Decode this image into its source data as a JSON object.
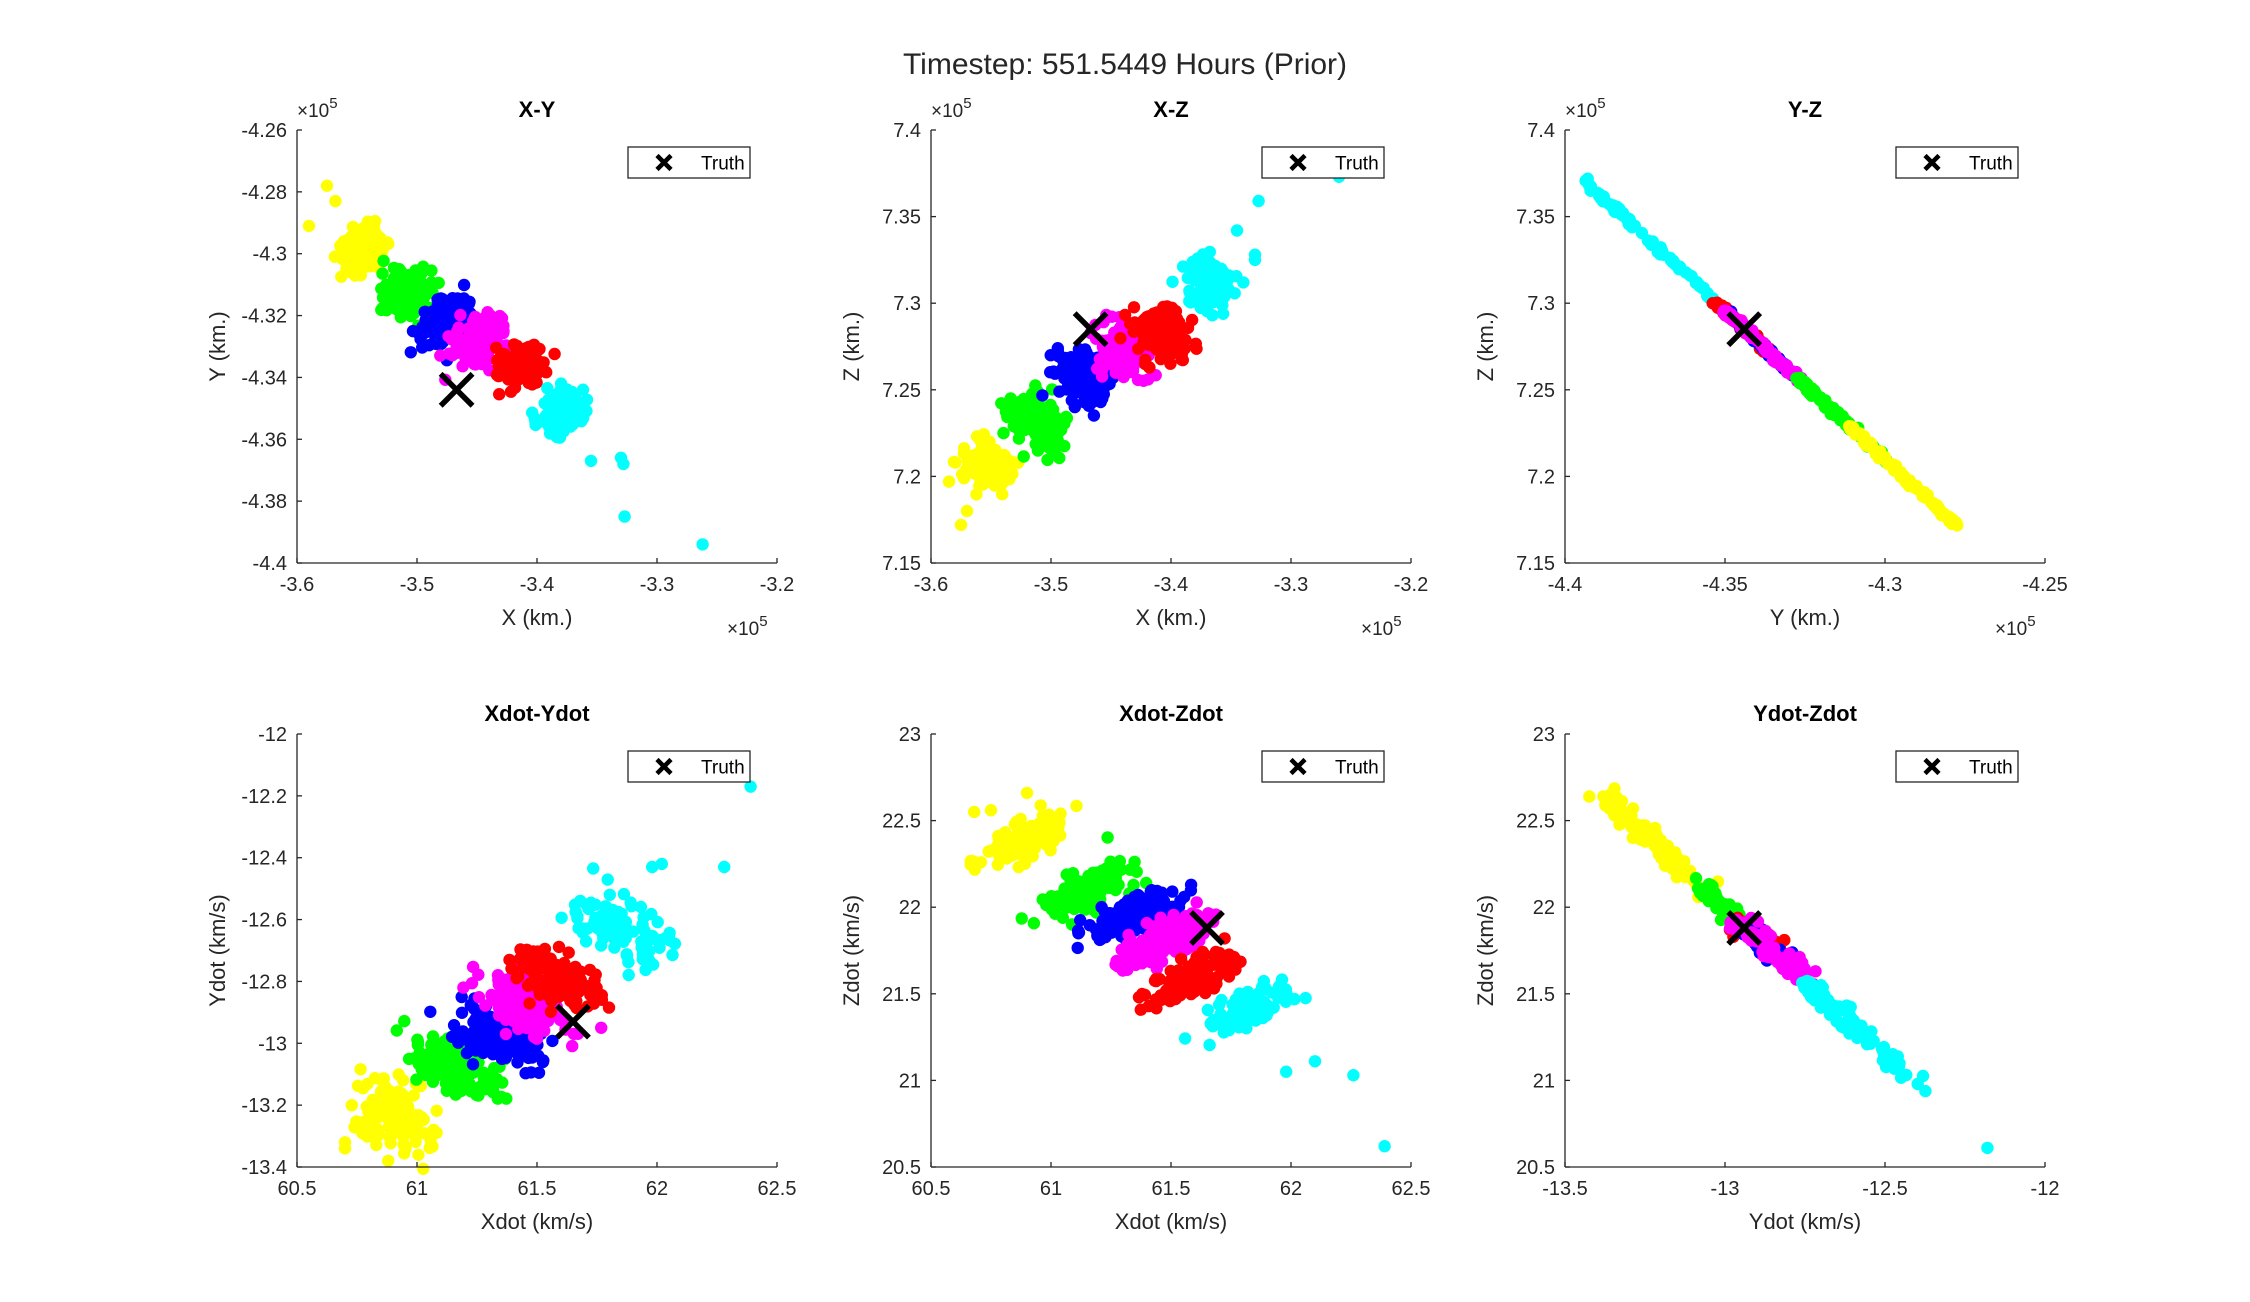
{
  "figure": {
    "title": "Timestep: 551.5449 Hours (Prior)"
  },
  "colors": {
    "series": [
      "#ffff00",
      "#00ff00",
      "#0000ff",
      "#ff00ff",
      "#ff0000",
      "#00ffff"
    ],
    "truth": "#000000"
  },
  "chart_data": [
    {
      "type": "scatter",
      "title": "X-Y",
      "xlabel": "X (km.)",
      "ylabel": "Y (km.)",
      "xlim": [
        -3.6,
        -3.2
      ],
      "ylim": [
        -4.4,
        -4.26
      ],
      "xticks": [
        -3.6,
        -3.5,
        -3.4,
        -3.3,
        -3.2
      ],
      "xtick_labels": [
        "-3.6",
        "-3.5",
        "-3.4",
        "-3.3",
        "-3.2"
      ],
      "yticks": [
        -4.4,
        -4.38,
        -4.36,
        -4.34,
        -4.32,
        -4.3,
        -4.28,
        -4.26
      ],
      "ytick_labels": [
        "-4.4",
        "-4.38",
        "-4.36",
        "-4.34",
        "-4.32",
        "-4.3",
        "-4.28",
        "-4.26"
      ],
      "x_exponent": "10",
      "x_exponent_power": "5",
      "y_exponent": "10",
      "y_exponent_power": "5",
      "legend": {
        "label": "Truth",
        "position": "top-right"
      },
      "truth": {
        "x": -3.467,
        "y": -4.344
      },
      "clusters": [
        {
          "color": "#ffff00",
          "center": [
            -3.545,
            -4.299
          ],
          "spread": [
            0.009,
            0.004
          ],
          "rotation": -0.55,
          "count": 110,
          "tail": [
            [
              -3.575,
              -4.278
            ],
            [
              -3.59,
              -4.291
            ],
            [
              -3.568,
              -4.283
            ],
            [
              -3.555,
              -4.306
            ]
          ]
        },
        {
          "color": "#00ff00",
          "center": [
            -3.508,
            -4.312
          ],
          "spread": [
            0.009,
            0.004
          ],
          "rotation": -0.55,
          "count": 150
        },
        {
          "color": "#0000ff",
          "center": [
            -3.477,
            -4.322
          ],
          "spread": [
            0.009,
            0.004
          ],
          "rotation": -0.55,
          "count": 150
        },
        {
          "color": "#ff00ff",
          "center": [
            -3.448,
            -4.328
          ],
          "spread": [
            0.009,
            0.004
          ],
          "rotation": -0.55,
          "count": 150
        },
        {
          "color": "#ff0000",
          "center": [
            -3.413,
            -4.336
          ],
          "spread": [
            0.009,
            0.004
          ],
          "rotation": -0.55,
          "count": 140
        },
        {
          "color": "#00ffff",
          "center": [
            -3.38,
            -4.351
          ],
          "spread": [
            0.008,
            0.004
          ],
          "rotation": -0.55,
          "count": 110,
          "tail": [
            [
              -3.33,
              -4.366
            ],
            [
              -3.328,
              -4.368
            ],
            [
              -3.327,
              -4.385
            ],
            [
              -3.262,
              -4.394
            ],
            [
              -3.355,
              -4.367
            ]
          ]
        }
      ]
    },
    {
      "type": "scatter",
      "title": "X-Z",
      "xlabel": "X (km.)",
      "ylabel": "Z (km.)",
      "xlim": [
        -3.6,
        -3.2
      ],
      "ylim": [
        7.15,
        7.4
      ],
      "xticks": [
        -3.6,
        -3.5,
        -3.4,
        -3.3,
        -3.2
      ],
      "xtick_labels": [
        "-3.6",
        "-3.5",
        "-3.4",
        "-3.3",
        "-3.2"
      ],
      "yticks": [
        7.15,
        7.2,
        7.25,
        7.3,
        7.35,
        7.4
      ],
      "ytick_labels": [
        "7.15",
        "7.2",
        "7.25",
        "7.3",
        "7.35",
        "7.4"
      ],
      "x_exponent": "10",
      "x_exponent_power": "5",
      "y_exponent": "10",
      "y_exponent_power": "5",
      "legend": {
        "label": "Truth",
        "position": "top-right"
      },
      "truth": {
        "x": -3.467,
        "y": 7.285
      },
      "clusters": [
        {
          "color": "#ffff00",
          "center": [
            -3.553,
            7.206
          ],
          "spread": [
            0.01,
            0.008
          ],
          "rotation": 0.6,
          "count": 110,
          "tail": [
            [
              -3.585,
              7.197
            ],
            [
              -3.575,
              7.172
            ],
            [
              -3.57,
              7.18
            ]
          ]
        },
        {
          "color": "#00ff00",
          "center": [
            -3.512,
            7.233
          ],
          "spread": [
            0.01,
            0.008
          ],
          "rotation": 0.6,
          "count": 150
        },
        {
          "color": "#0000ff",
          "center": [
            -3.475,
            7.259
          ],
          "spread": [
            0.01,
            0.008
          ],
          "rotation": 0.6,
          "count": 150
        },
        {
          "color": "#ff00ff",
          "center": [
            -3.44,
            7.271
          ],
          "spread": [
            0.01,
            0.008
          ],
          "rotation": 0.6,
          "count": 150
        },
        {
          "color": "#ff0000",
          "center": [
            -3.408,
            7.282
          ],
          "spread": [
            0.01,
            0.008
          ],
          "rotation": 0.6,
          "count": 140
        },
        {
          "color": "#00ffff",
          "center": [
            -3.368,
            7.31
          ],
          "spread": [
            0.009,
            0.008
          ],
          "rotation": 0.6,
          "count": 110,
          "tail": [
            [
              -3.33,
              7.325
            ],
            [
              -3.33,
              7.328
            ],
            [
              -3.327,
              7.359
            ],
            [
              -3.26,
              7.373
            ],
            [
              -3.345,
              7.342
            ]
          ]
        }
      ]
    },
    {
      "type": "scatter",
      "title": "Y-Z",
      "xlabel": "Y (km.)",
      "ylabel": "Z (km.)",
      "xlim": [
        -4.4,
        -4.25
      ],
      "ylim": [
        7.15,
        7.4
      ],
      "xticks": [
        -4.4,
        -4.35,
        -4.3,
        -4.25
      ],
      "xtick_labels": [
        "-4.4",
        "-4.35",
        "-4.3",
        "-4.25"
      ],
      "yticks": [
        7.15,
        7.2,
        7.25,
        7.3,
        7.35,
        7.4
      ],
      "ytick_labels": [
        "7.15",
        "7.2",
        "7.25",
        "7.3",
        "7.35",
        "7.4"
      ],
      "x_exponent": "10",
      "x_exponent_power": "5",
      "y_exponent": "10",
      "y_exponent_power": "5",
      "legend": {
        "label": "Truth",
        "position": "top-right"
      },
      "truth": {
        "x": -4.344,
        "y": 7.285
      },
      "line": {
        "x0": -4.395,
        "y0": 7.373,
        "x1": -4.278,
        "y1": 7.172
      },
      "clusters": [
        {
          "color": "#00ffff",
          "range": [
            0.0,
            0.38
          ],
          "count": 80,
          "jitter": 0.0012
        },
        {
          "color": "#ff0000",
          "range": [
            0.36,
            0.52
          ],
          "count": 70,
          "jitter": 0.0012
        },
        {
          "color": "#0000ff",
          "range": [
            0.38,
            0.58
          ],
          "count": 80,
          "jitter": 0.0012
        },
        {
          "color": "#ff00ff",
          "range": [
            0.38,
            0.62
          ],
          "count": 120,
          "jitter": 0.0012
        },
        {
          "color": "#00ff00",
          "range": [
            0.58,
            0.82
          ],
          "count": 100,
          "jitter": 0.0012
        },
        {
          "color": "#ffff00",
          "range": [
            0.72,
            1.0
          ],
          "count": 100,
          "jitter": 0.0012
        }
      ]
    },
    {
      "type": "scatter",
      "title": "Xdot-Ydot",
      "xlabel": "Xdot (km/s)",
      "ylabel": "Ydot (km/s)",
      "xlim": [
        60.5,
        62.5
      ],
      "ylim": [
        -13.4,
        -12
      ],
      "xticks": [
        60.5,
        61,
        61.5,
        62,
        62.5
      ],
      "xtick_labels": [
        "60.5",
        "61",
        "61.5",
        "62",
        "62.5"
      ],
      "yticks": [
        -13.4,
        -13.2,
        -13,
        -12.8,
        -12.6,
        -12.4,
        -12.2,
        -12
      ],
      "ytick_labels": [
        "-13.4",
        "-13.2",
        "-13",
        "-12.8",
        "-12.6",
        "-12.4",
        "-12.2",
        "-12"
      ],
      "legend": {
        "label": "Truth",
        "position": "top-right"
      },
      "truth": {
        "x": 61.65,
        "y": -12.93
      },
      "clusters": [
        {
          "color": "#ffff00",
          "center": [
            60.9,
            -13.23
          ],
          "spread": [
            0.1,
            0.05
          ],
          "rotation": -0.55,
          "count": 110,
          "tail": [
            [
              60.7,
              -13.32
            ],
            [
              60.7,
              -13.34
            ],
            [
              60.88,
              -13.38
            ]
          ]
        },
        {
          "color": "#00ff00",
          "center": [
            61.17,
            -13.08
          ],
          "spread": [
            0.1,
            0.04
          ],
          "rotation": -0.55,
          "count": 150
        },
        {
          "color": "#0000ff",
          "center": [
            61.35,
            -12.98
          ],
          "spread": [
            0.1,
            0.04
          ],
          "rotation": -0.55,
          "count": 150
        },
        {
          "color": "#ff00ff",
          "center": [
            61.45,
            -12.87
          ],
          "spread": [
            0.1,
            0.04
          ],
          "rotation": -0.55,
          "count": 150
        },
        {
          "color": "#ff0000",
          "center": [
            61.58,
            -12.79
          ],
          "spread": [
            0.1,
            0.04
          ],
          "rotation": -0.55,
          "count": 140
        },
        {
          "color": "#00ffff",
          "center": [
            61.84,
            -12.63
          ],
          "spread": [
            0.1,
            0.04
          ],
          "rotation": -0.55,
          "count": 110,
          "tail": [
            [
              62.39,
              -12.17
            ],
            [
              62.28,
              -12.43
            ],
            [
              61.98,
              -12.43
            ],
            [
              62.02,
              -12.42
            ]
          ]
        }
      ]
    },
    {
      "type": "scatter",
      "title": "Xdot-Zdot",
      "xlabel": "Xdot (km/s)",
      "ylabel": "Zdot (km/s)",
      "xlim": [
        60.5,
        62.5
      ],
      "ylim": [
        20.5,
        23
      ],
      "xticks": [
        60.5,
        61,
        61.5,
        62,
        62.5
      ],
      "xtick_labels": [
        "60.5",
        "61",
        "61.5",
        "62",
        "62.5"
      ],
      "yticks": [
        20.5,
        21,
        21.5,
        22,
        22.5,
        23
      ],
      "ytick_labels": [
        "20.5",
        "21",
        "21.5",
        "22",
        "22.5",
        "23"
      ],
      "legend": {
        "label": "Truth",
        "position": "top-right"
      },
      "truth": {
        "x": 61.65,
        "y": 21.88
      },
      "clusters": [
        {
          "color": "#ffff00",
          "center": [
            60.88,
            22.38
          ],
          "spread": [
            0.1,
            0.05
          ],
          "rotation": 0.5,
          "count": 110,
          "tail": [
            [
              60.68,
              22.55
            ],
            [
              60.9,
              22.66
            ],
            [
              60.75,
              22.56
            ]
          ]
        },
        {
          "color": "#00ff00",
          "center": [
            61.15,
            22.1
          ],
          "spread": [
            0.1,
            0.05
          ],
          "rotation": 0.5,
          "count": 150
        },
        {
          "color": "#0000ff",
          "center": [
            61.35,
            21.95
          ],
          "spread": [
            0.1,
            0.05
          ],
          "rotation": 0.5,
          "count": 150
        },
        {
          "color": "#ff00ff",
          "center": [
            61.47,
            21.81
          ],
          "spread": [
            0.1,
            0.05
          ],
          "rotation": 0.5,
          "count": 150
        },
        {
          "color": "#ff0000",
          "center": [
            61.6,
            21.6
          ],
          "spread": [
            0.1,
            0.05
          ],
          "rotation": 0.5,
          "count": 140
        },
        {
          "color": "#00ffff",
          "center": [
            61.82,
            21.41
          ],
          "spread": [
            0.1,
            0.05
          ],
          "rotation": 0.5,
          "count": 110,
          "tail": [
            [
              62.39,
              20.62
            ],
            [
              62.26,
              21.03
            ],
            [
              62.1,
              21.11
            ],
            [
              61.98,
              21.05
            ]
          ]
        }
      ]
    },
    {
      "type": "scatter",
      "title": "Ydot-Zdot",
      "xlabel": "Ydot (km/s)",
      "ylabel": "Zdot (km/s)",
      "xlim": [
        -13.5,
        -12
      ],
      "ylim": [
        20.5,
        23
      ],
      "xticks": [
        -13.5,
        -13,
        -12.5,
        -12
      ],
      "xtick_labels": [
        "-13.5",
        "-13",
        "-12.5",
        "-12"
      ],
      "yticks": [
        20.5,
        21,
        21.5,
        22,
        22.5,
        23
      ],
      "ytick_labels": [
        "20.5",
        "21",
        "21.5",
        "22",
        "22.5",
        "23"
      ],
      "legend": {
        "label": "Truth",
        "position": "top-right"
      },
      "truth": {
        "x": -12.94,
        "y": 21.88
      },
      "line": {
        "x0": -13.39,
        "y0": 22.66,
        "x1": -12.18,
        "y1": 20.61
      },
      "clusters": [
        {
          "color": "#ffff00",
          "range": [
            0.0,
            0.28
          ],
          "count": 90,
          "jitter": 0.004
        },
        {
          "color": "#00ff00",
          "range": [
            0.26,
            0.38
          ],
          "count": 60,
          "jitter": 0.004
        },
        {
          "color": "#ff0000",
          "range": [
            0.36,
            0.44
          ],
          "count": 30,
          "jitter": 0.004
        },
        {
          "color": "#0000ff",
          "range": [
            0.38,
            0.48
          ],
          "count": 30,
          "jitter": 0.004
        },
        {
          "color": "#ff00ff",
          "range": [
            0.36,
            0.54
          ],
          "count": 80,
          "jitter": 0.004
        },
        {
          "color": "#00ffff",
          "range": [
            0.52,
            0.8
          ],
          "count": 90,
          "jitter": 0.004,
          "tail_fractions": [
            0.82,
            0.84,
            1.0
          ]
        }
      ]
    }
  ]
}
